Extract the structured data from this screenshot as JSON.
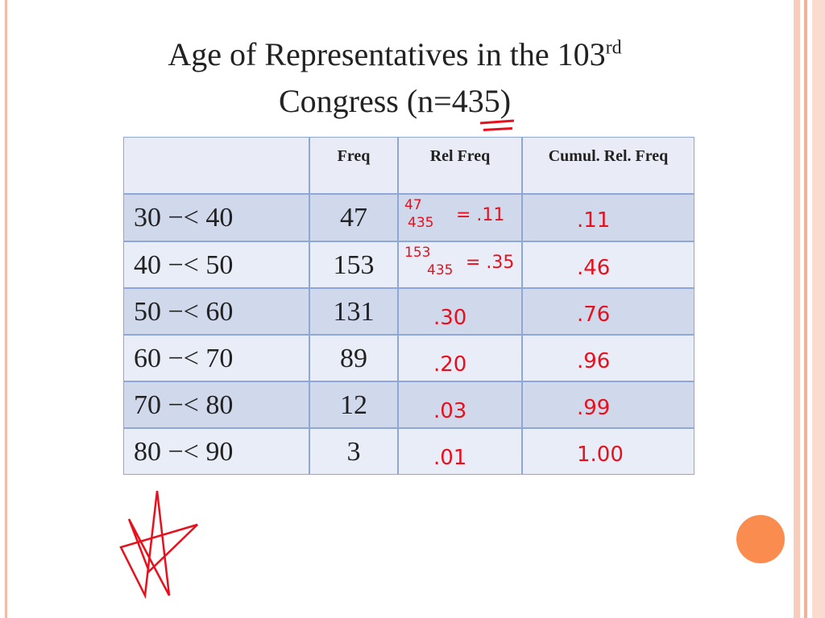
{
  "title": {
    "main": "Age of Representatives in the 103",
    "sup": "rd",
    "line2": "Congress (n=435)"
  },
  "table": {
    "header": [
      "Freq",
      "Rel Freq",
      "Cumul. Rel. Freq"
    ],
    "rows": [
      [
        "30 −< 40",
        47
      ],
      [
        "40 −< 50",
        153
      ],
      [
        "50 −< 60",
        131
      ],
      [
        "60 −< 70",
        89
      ],
      [
        "70 −< 80",
        12
      ],
      [
        "80 −< 90",
        3
      ]
    ]
  },
  "handwritten": {
    "rel_freq": [
      {
        "numerator": "47",
        "denominator": "435",
        "result": "= .11"
      },
      {
        "numerator": "153",
        "denominator": "435",
        "result": "= .35"
      },
      ".30",
      ".20",
      ".03",
      ".01"
    ],
    "cumul": [
      ".11",
      ".46",
      ".76",
      ".96",
      ".99",
      "1.00"
    ]
  }
}
